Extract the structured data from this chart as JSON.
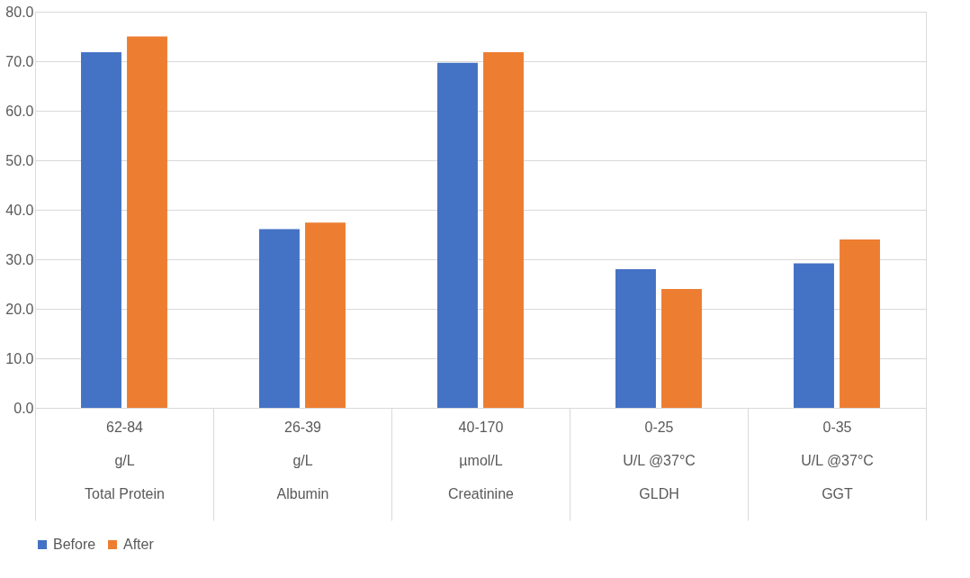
{
  "chart_data": {
    "type": "bar",
    "categories": [
      "62-84\ng/L\nTotal Protein",
      "26-39\ng/L\nAlbumin",
      "40-170\nµmol/L\nCreatinine",
      "0-25\nU/L @37°C\nGLDH",
      "0-35\nU/L @37°C\nGGT"
    ],
    "series": [
      {
        "name": "Before",
        "color": "#4472c4",
        "values": [
          71.8,
          36.1,
          69.7,
          28.0,
          29.2
        ]
      },
      {
        "name": "After",
        "color": "#ed7d31",
        "values": [
          75.0,
          37.4,
          71.8,
          24.0,
          34.0
        ]
      }
    ],
    "ylim": [
      0,
      80
    ],
    "yticks": [
      {
        "value": 0,
        "label": "0.0"
      },
      {
        "value": 10,
        "label": "10.0"
      },
      {
        "value": 20,
        "label": "20.0"
      },
      {
        "value": 30,
        "label": "30.0"
      },
      {
        "value": 40,
        "label": "40.0"
      },
      {
        "value": 50,
        "label": "50.0"
      },
      {
        "value": 60,
        "label": "60.0"
      },
      {
        "value": 70,
        "label": "70.0"
      },
      {
        "value": 80,
        "label": "80.0"
      }
    ],
    "grid": "y",
    "legend": "bottom"
  }
}
